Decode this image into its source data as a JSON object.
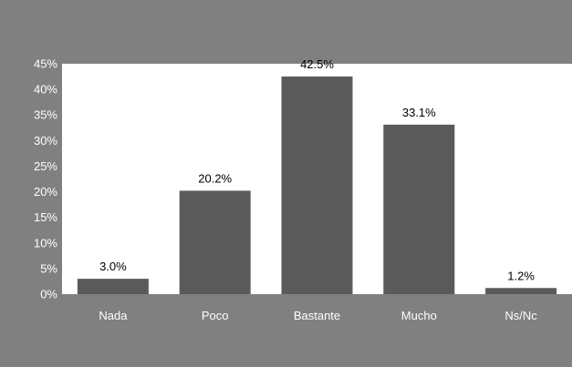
{
  "chart_data": {
    "type": "bar",
    "categories": [
      "Nada",
      "Poco",
      "Bastante",
      "Mucho",
      "Ns/Nc"
    ],
    "values": [
      3.0,
      20.2,
      42.5,
      33.1,
      1.2
    ],
    "data_labels": [
      "3.0%",
      "20.2%",
      "42.5%",
      "33.1%",
      "1.2%"
    ],
    "yticks": [
      "0%",
      "5%",
      "10%",
      "15%",
      "20%",
      "25%",
      "30%",
      "35%",
      "40%",
      "45%"
    ],
    "ylim": [
      0,
      45
    ],
    "grid": false,
    "legend": "none",
    "title": "",
    "xlabel": "",
    "ylabel": ""
  },
  "colors": {
    "background": "#808080",
    "plot_area": "#ffffff",
    "bar": "#5a5a5a",
    "axis_text": "#ffffff",
    "label_text": "#000000"
  }
}
